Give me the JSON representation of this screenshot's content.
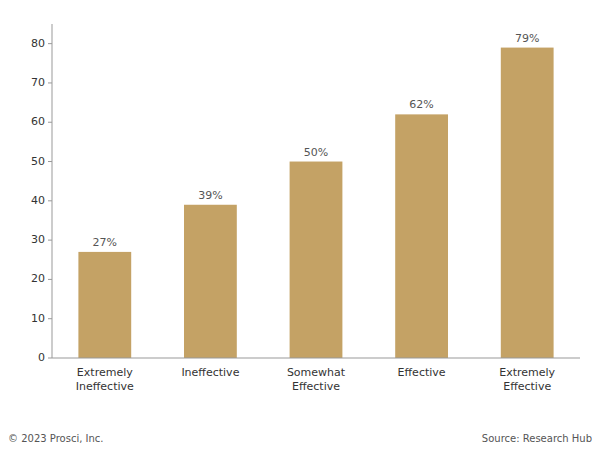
{
  "chart_data": {
    "type": "bar",
    "categories": [
      "Extremely\nIneffective",
      "Ineffective",
      "Somewhat\nEffective",
      "Effective",
      "Extremely\nEffective"
    ],
    "values": [
      27,
      39,
      50,
      62,
      79
    ],
    "value_labels": [
      "27%",
      "39%",
      "50%",
      "62%",
      "79%"
    ],
    "data_labels": true,
    "color": "#C4A265",
    "ylim": [
      0,
      85
    ],
    "yticks": [
      0,
      10,
      20,
      30,
      40,
      50,
      60,
      70,
      80
    ],
    "grid": false,
    "annotations": [
      "© 2023 Prosci, Inc.",
      "Source: Research Hub"
    ]
  }
}
